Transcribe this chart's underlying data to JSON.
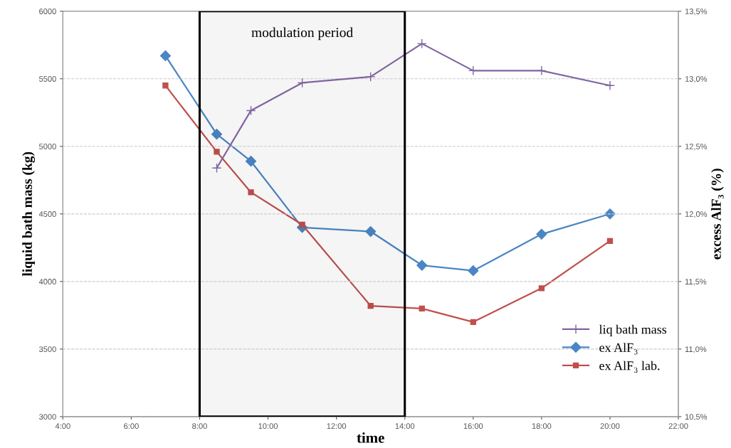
{
  "chart_data": {
    "type": "line",
    "xlabel": "time",
    "ylabel": "liquid bath mass (kg)",
    "y2label": "excess AlF₃ (%)",
    "xlim": [
      4,
      22
    ],
    "xticks": [
      {
        "value": 4,
        "label": "4:00"
      },
      {
        "value": 6,
        "label": "6:00"
      },
      {
        "value": 8,
        "label": "8:00"
      },
      {
        "value": 10,
        "label": "10:00"
      },
      {
        "value": 12,
        "label": "12:00"
      },
      {
        "value": 14,
        "label": "14:00"
      },
      {
        "value": 16,
        "label": "16:00"
      },
      {
        "value": 18,
        "label": "18:00"
      },
      {
        "value": 20,
        "label": "20:00"
      },
      {
        "value": 22,
        "label": "22:00"
      }
    ],
    "ylim": [
      3000,
      6000
    ],
    "yticks": [
      3000,
      3500,
      4000,
      4500,
      5000,
      5500,
      6000
    ],
    "y2lim": [
      10.5,
      13.5
    ],
    "y2ticks": [
      {
        "value": 10.5,
        "label": "10,5%"
      },
      {
        "value": 11.0,
        "label": "11,0%"
      },
      {
        "value": 11.5,
        "label": "11,5%"
      },
      {
        "value": 12.0,
        "label": "12,0%"
      },
      {
        "value": 12.5,
        "label": "12,5%"
      },
      {
        "value": 13.0,
        "label": "13,0%"
      },
      {
        "value": 13.5,
        "label": "13,5%"
      }
    ],
    "grid": "y",
    "legend": "bottom right",
    "series": [
      {
        "name": "liq bath mass",
        "color": "#8064a2",
        "marker": "cross",
        "x": [
          8.5,
          9.5,
          11,
          13,
          14.5,
          16,
          18,
          20
        ],
        "values": [
          4840,
          5265,
          5470,
          5515,
          5760,
          5560,
          5560,
          5450
        ]
      },
      {
        "name": "ex AlF₃",
        "color": "#4a86c5",
        "marker": "diamond",
        "axis": "y2",
        "x": [
          7,
          8.5,
          9.5,
          11,
          13,
          14.5,
          16,
          18,
          20
        ],
        "values": [
          13.17,
          12.59,
          12.39,
          11.9,
          11.87,
          11.62,
          11.58,
          11.85,
          12.0
        ]
      },
      {
        "name": "ex AlF₃ lab.",
        "color": "#c0504d",
        "marker": "square",
        "axis": "y2",
        "x": [
          7,
          8.5,
          9.5,
          11,
          13,
          14.5,
          16,
          18,
          20
        ],
        "values": [
          12.95,
          12.46,
          12.16,
          11.92,
          11.32,
          11.3,
          11.2,
          11.45,
          11.8
        ]
      }
    ],
    "bands": [
      {
        "axis": "x",
        "from": 8,
        "to": 14,
        "label": "modulation period",
        "color": "#000000"
      }
    ]
  }
}
